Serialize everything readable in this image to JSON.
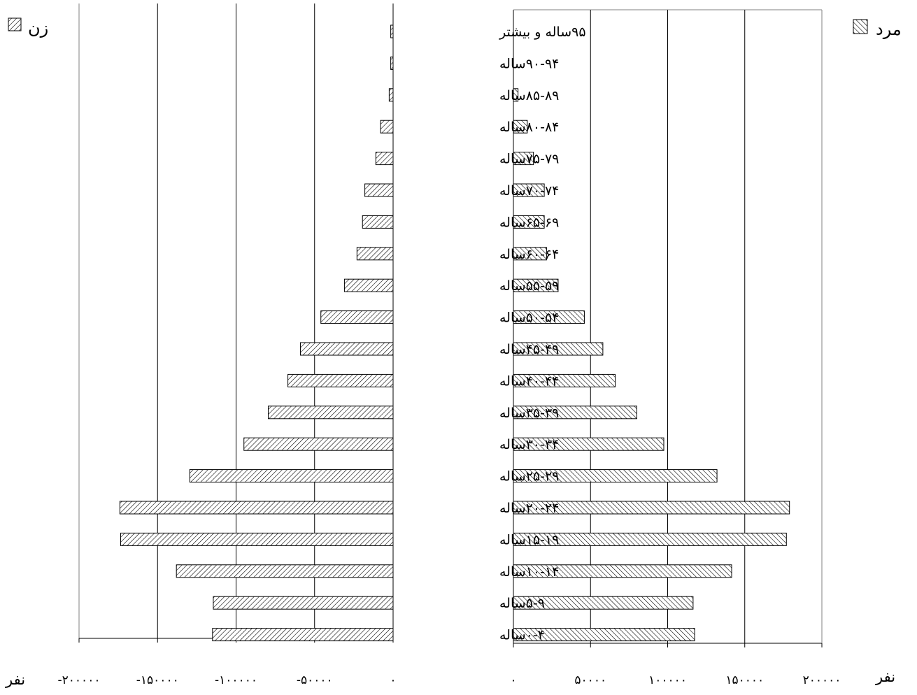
{
  "legend": {
    "female": "زن",
    "male": "مرد"
  },
  "axis": {
    "unit_left": "نفر",
    "unit_right": "نفر",
    "female_ticks": [
      "-۲۰۰۰۰۰",
      "-۱۵۰۰۰۰",
      "-۱۰۰۰۰۰",
      "-۵۰۰۰۰",
      "۰"
    ],
    "male_ticks": [
      "۰",
      "۵۰۰۰۰",
      "۱۰۰۰۰۰",
      "۱۵۰۰۰۰",
      "۲۰۰۰۰۰"
    ]
  },
  "chart_data": {
    "type": "bar",
    "orientation": "horizontal",
    "categories": [
      "۹۵ساله و بیشتر",
      "۹۰-۹۴ساله",
      "۸۵-۸۹ساله",
      "۸۰-۸۴ساله",
      "۷۵-۷۹ساله",
      "۷۰-۷۴ساله",
      "۶۵-۶۹ساله",
      "۶۰-۶۴ساله",
      "۵۵-۵۹ساله",
      "۵۰-۵۴ساله",
      "۴۵-۴۹ساله",
      "۴۰-۴۴ساله",
      "۳۵-۳۹ساله",
      "۳۰-۳۴ساله",
      "۲۵-۲۹ساله",
      "۲۰-۲۴ساله",
      "۱۵-۱۹ساله",
      "۱۰-۱۴ساله",
      "۵-۹ساله",
      "۰-۴ساله"
    ],
    "series": [
      {
        "name": "زن",
        "values": [
          -1500,
          -1500,
          -2500,
          -8000,
          -11000,
          -18000,
          -19500,
          -23000,
          -31000,
          -46000,
          -59000,
          -67000,
          -79500,
          -95000,
          -129500,
          -174000,
          -173500,
          -138000,
          -114500,
          -115000
        ]
      },
      {
        "name": "مرد",
        "values": [
          0,
          0,
          3000,
          9000,
          13000,
          20000,
          20000,
          21500,
          29000,
          46000,
          58000,
          66000,
          80000,
          97500,
          132000,
          179000,
          177000,
          141500,
          116500,
          117500
        ]
      }
    ],
    "xlim_female": [
      -200000,
      0
    ],
    "xlim_male": [
      0,
      200000
    ],
    "grid": true,
    "legend_position": "top"
  },
  "colors": {
    "bar_fill": "#ffffff",
    "bar_stroke": "#000000",
    "hatch": "#000000",
    "grid": "#000000",
    "frame": "#808080"
  }
}
